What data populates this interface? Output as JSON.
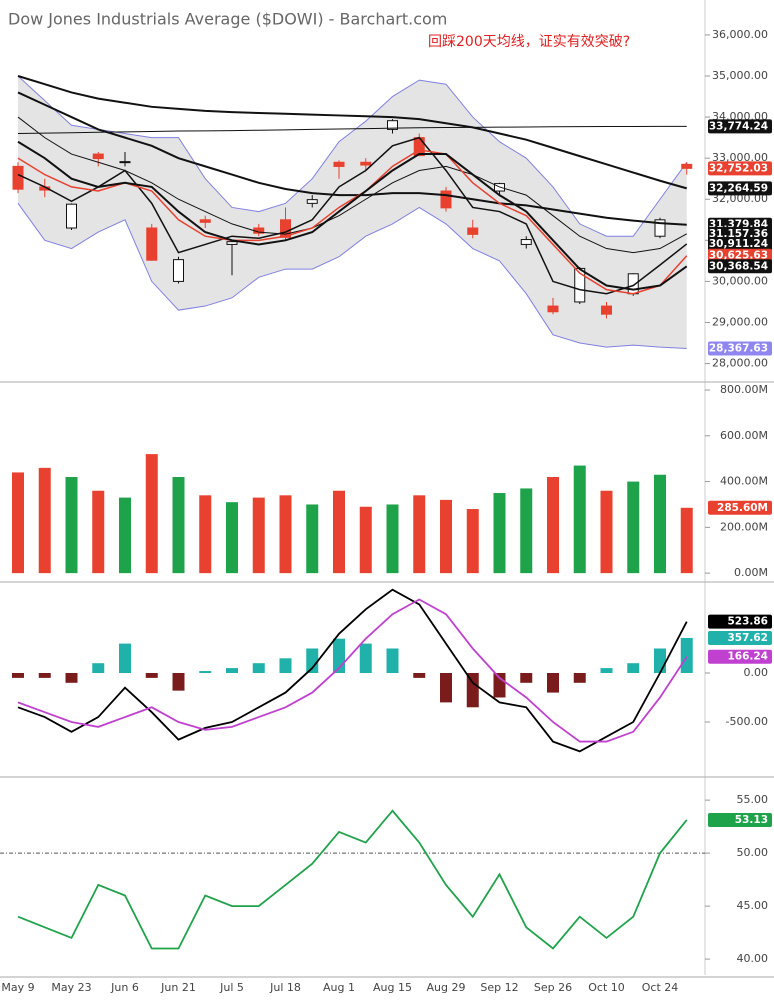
{
  "chart_data": [
    {
      "type": "candlestick",
      "title": "Dow Jones Industrials Average ($DOWI) - Barchart.com",
      "annotation": "回踩200天均线，证实有效突破?",
      "ylim": [
        27600,
        36850
      ],
      "yticks": [
        {
          "value": 28000,
          "label": "28,000.00"
        },
        {
          "value": 29000,
          "label": "29,000.00"
        },
        {
          "value": 30000,
          "label": "30,000.00"
        },
        {
          "value": 31000,
          "label": "31,000.00"
        },
        {
          "value": 32000,
          "label": "32,000.00"
        },
        {
          "value": 33000,
          "label": "33,000.00"
        },
        {
          "value": 34000,
          "label": "34,000.00"
        },
        {
          "value": 35000,
          "label": "35,000.00"
        },
        {
          "value": 36000,
          "label": "36,000.00"
        }
      ],
      "up_color": "#ffffff",
      "down_color": "#e8412f",
      "open": [
        32800,
        32300,
        31300,
        33100,
        32900,
        31300,
        30000,
        31500,
        30900,
        31300,
        31500,
        31900,
        32900,
        32900,
        33700,
        33500,
        32200,
        31300,
        32200,
        30900,
        29400,
        29500,
        29400,
        29700,
        31100,
        32850
      ],
      "high": [
        32900,
        32500,
        31900,
        33150,
        33150,
        31400,
        30600,
        31600,
        31000,
        31400,
        31800,
        32100,
        32950,
        33000,
        33950,
        33600,
        32300,
        31500,
        32400,
        31100,
        29600,
        30350,
        29500,
        30200,
        31550,
        32900
      ],
      "low": [
        32150,
        32050,
        31250,
        32800,
        32800,
        30500,
        29950,
        31300,
        30150,
        31100,
        31000,
        31800,
        32500,
        32700,
        33600,
        33050,
        31700,
        31050,
        32100,
        30800,
        29200,
        29450,
        29100,
        29650,
        31050,
        32600
      ],
      "close": [
        32245,
        32223,
        31880,
        32990,
        32915,
        30516,
        30530,
        31438,
        30967,
        31173,
        31072,
        31990,
        32798,
        32832,
        33912,
        33063,
        31790,
        31145,
        32381,
        31019,
        29261,
        30316,
        29202,
        30185,
        31499,
        32752.03
      ],
      "close_labels": [
        null,
        null,
        null,
        null,
        null,
        null,
        null,
        null,
        null,
        null,
        null,
        null,
        null,
        null,
        null,
        null,
        null,
        null,
        null,
        null,
        null,
        null,
        null,
        null,
        null,
        "32,752.03"
      ],
      "band": {
        "fill": "#e4e4e4",
        "line_color": "#8080e0",
        "upper": [
          35000,
          34400,
          33800,
          33700,
          33600,
          33500,
          33500,
          32500,
          31800,
          31700,
          31900,
          32500,
          33400,
          33900,
          34500,
          34900,
          34800,
          34000,
          33400,
          33000,
          32300,
          31400,
          31100,
          31100,
          32000,
          32900
        ],
        "lower": [
          31900,
          31000,
          30800,
          31200,
          31500,
          30000,
          29300,
          29400,
          29600,
          30100,
          30300,
          30300,
          30600,
          31100,
          31400,
          31800,
          31400,
          30800,
          30500,
          29700,
          28700,
          28500,
          28400,
          28450,
          28400,
          28367.63
        ],
        "lower_labels": [
          null,
          null,
          null,
          null,
          null,
          null,
          null,
          null,
          null,
          null,
          null,
          null,
          null,
          null,
          null,
          null,
          null,
          null,
          null,
          null,
          null,
          null,
          null,
          null,
          null,
          "28,367.63"
        ],
        "label_color": "#8f86f0"
      },
      "series": [
        {
          "color": "#111111",
          "width": 1,
          "values": [
            33600,
            33610,
            33620,
            33630,
            33640,
            33650,
            33660,
            33665,
            33670,
            33680,
            33690,
            33700,
            33710,
            33720,
            33730,
            33740,
            33745,
            33750,
            33755,
            33760,
            33765,
            33768,
            33770,
            33772,
            33773,
            33774.24
          ],
          "value_labels": [
            null,
            null,
            null,
            null,
            null,
            null,
            null,
            null,
            null,
            null,
            null,
            null,
            null,
            null,
            null,
            null,
            null,
            null,
            null,
            null,
            null,
            null,
            null,
            null,
            null,
            "33,774.24"
          ]
        },
        {
          "color": "#111111",
          "width": 2,
          "values": [
            35000,
            34800,
            34600,
            34450,
            34350,
            34250,
            34200,
            34150,
            34120,
            34100,
            34080,
            34060,
            34040,
            34020,
            34000,
            33950,
            33850,
            33750,
            33600,
            33450,
            33250,
            33050,
            32850,
            32650,
            32450,
            32264.59
          ],
          "value_labels": [
            null,
            null,
            null,
            null,
            null,
            null,
            null,
            null,
            null,
            null,
            null,
            null,
            null,
            null,
            null,
            null,
            null,
            null,
            null,
            null,
            null,
            null,
            null,
            null,
            null,
            "32,264.59"
          ]
        },
        {
          "color": "#111111",
          "width": 2,
          "values": [
            34600,
            34300,
            34000,
            33700,
            33500,
            33300,
            33000,
            32800,
            32600,
            32400,
            32250,
            32150,
            32100,
            32100,
            32150,
            32150,
            32100,
            32000,
            31900,
            31850,
            31750,
            31650,
            31550,
            31480,
            31420,
            31379.84
          ],
          "value_labels": [
            null,
            null,
            null,
            null,
            null,
            null,
            null,
            null,
            null,
            null,
            null,
            null,
            null,
            null,
            null,
            null,
            null,
            null,
            null,
            null,
            null,
            null,
            null,
            null,
            null,
            "31,379.84"
          ]
        },
        {
          "color": "#111111",
          "width": 1,
          "values": [
            34000,
            33500,
            33100,
            32900,
            32700,
            32400,
            32000,
            31700,
            31400,
            31200,
            31150,
            31300,
            31600,
            32000,
            32400,
            32700,
            32800,
            32600,
            32300,
            32100,
            31600,
            31100,
            30800,
            30700,
            30800,
            31157.36
          ],
          "value_labels": [
            null,
            null,
            null,
            null,
            null,
            null,
            null,
            null,
            null,
            null,
            null,
            null,
            null,
            null,
            null,
            null,
            null,
            null,
            null,
            null,
            null,
            null,
            null,
            null,
            null,
            "31,157.36"
          ]
        },
        {
          "color": "#111111",
          "width": 1.5,
          "values": [
            32600,
            32300,
            31950,
            32300,
            32700,
            31900,
            30700,
            30900,
            31100,
            31050,
            31200,
            31500,
            32300,
            32700,
            33300,
            33500,
            32700,
            31800,
            31700,
            31400,
            30000,
            29800,
            29700,
            29900,
            30400,
            30911.24
          ],
          "value_labels": [
            null,
            null,
            null,
            null,
            null,
            null,
            null,
            null,
            null,
            null,
            null,
            null,
            null,
            null,
            null,
            null,
            null,
            null,
            null,
            null,
            null,
            null,
            null,
            null,
            null,
            "30,911.24"
          ]
        },
        {
          "color": "#e8412f",
          "width": 1.5,
          "values": [
            33000,
            32600,
            32300,
            32200,
            32400,
            32200,
            31500,
            31100,
            31000,
            31000,
            31100,
            31300,
            31800,
            32200,
            32800,
            33200,
            33100,
            32400,
            31900,
            31600,
            30900,
            30200,
            29800,
            29700,
            29900,
            30625.63
          ],
          "value_labels": [
            null,
            null,
            null,
            null,
            null,
            null,
            null,
            null,
            null,
            null,
            null,
            null,
            null,
            null,
            null,
            null,
            null,
            null,
            null,
            null,
            null,
            null,
            null,
            null,
            null,
            "30,625.63"
          ]
        },
        {
          "color": "#111111",
          "width": 2,
          "values": [
            33400,
            33000,
            32500,
            32300,
            32400,
            32300,
            31700,
            31200,
            31000,
            30900,
            31000,
            31200,
            31700,
            32200,
            32700,
            33100,
            33100,
            32600,
            32100,
            31700,
            31000,
            30300,
            29900,
            29800,
            29900,
            30368.54
          ],
          "value_labels": [
            null,
            null,
            null,
            null,
            null,
            null,
            null,
            null,
            null,
            null,
            null,
            null,
            null,
            null,
            null,
            null,
            null,
            null,
            null,
            null,
            null,
            null,
            null,
            null,
            null,
            "30,368.54"
          ]
        }
      ]
    },
    {
      "type": "bar",
      "ylim": [
        -30,
        822
      ],
      "yticks": [
        {
          "value": 0,
          "label": "0.00M"
        },
        {
          "value": 200,
          "label": "200.00M"
        },
        {
          "value": 400,
          "label": "400.00M"
        },
        {
          "value": 600,
          "label": "600.00M"
        },
        {
          "value": 800,
          "label": "800.00M"
        }
      ],
      "up_color": "#1fa34a",
      "down_color": "#e8412f",
      "values": [
        440,
        460,
        420,
        360,
        330,
        520,
        420,
        340,
        310,
        330,
        340,
        300,
        360,
        290,
        300,
        340,
        320,
        280,
        350,
        370,
        420,
        470,
        360,
        400,
        430,
        285.6
      ],
      "value_labels": [
        null,
        null,
        null,
        null,
        null,
        null,
        null,
        null,
        null,
        null,
        null,
        null,
        null,
        null,
        null,
        null,
        null,
        null,
        null,
        null,
        null,
        null,
        null,
        null,
        null,
        "285.60M"
      ]
    },
    {
      "type": "macd",
      "ylim": [
        -1041,
        898
      ],
      "yticks": [
        {
          "value": -500,
          "label": "-500.00"
        },
        {
          "value": 0,
          "label": "0.00"
        }
      ],
      "hist": {
        "pos_color": "#20b2aa",
        "neg_color": "#7b1c1c",
        "values": [
          -50,
          -50,
          -100,
          100,
          300,
          -50,
          -180,
          20,
          50,
          100,
          150,
          250,
          350,
          300,
          250,
          -50,
          -300,
          -350,
          -250,
          -100,
          -200,
          -100,
          50,
          100,
          250,
          357.62
        ]
      },
      "series": [
        {
          "color": "#000000",
          "values": [
            -350,
            -450,
            -600,
            -450,
            -150,
            -400,
            -680,
            -560,
            -500,
            -350,
            -200,
            50,
            400,
            650,
            850,
            700,
            300,
            -100,
            -300,
            -350,
            -700,
            -800,
            -650,
            -500,
            0,
            523.86
          ]
        },
        {
          "color": "#c040d0",
          "values": [
            -300,
            -400,
            -500,
            -550,
            -450,
            -350,
            -500,
            -580,
            -550,
            -450,
            -350,
            -200,
            50,
            350,
            600,
            750,
            600,
            250,
            -50,
            -250,
            -500,
            -700,
            -700,
            -600,
            -250,
            166.24
          ]
        }
      ]
    },
    {
      "type": "line",
      "ylim": [
        38.5,
        56.9
      ],
      "yticks": [
        {
          "value": 40,
          "label": "40.00"
        },
        {
          "value": 45,
          "label": "45.00"
        },
        {
          "value": 50,
          "label": "50.00"
        },
        {
          "value": 55,
          "label": "55.00"
        }
      ],
      "midline": 50,
      "color": "#1fa34a",
      "categories": [
        "May 9",
        null,
        "May 23",
        null,
        "Jun 6",
        null,
        "Jun 21",
        null,
        "Jul 5",
        null,
        "Jul 18",
        null,
        "Aug 1",
        null,
        "Aug 15",
        null,
        "Aug 29",
        null,
        "Sep 12",
        null,
        "Sep 26",
        null,
        "Oct 10",
        null,
        "Oct 24",
        null
      ],
      "values": [
        44,
        43,
        42,
        47,
        46,
        41,
        41,
        46,
        45,
        45,
        47,
        49,
        52,
        51,
        54,
        51,
        47,
        44,
        48,
        43,
        41,
        44,
        42,
        44,
        50,
        53.13
      ]
    }
  ]
}
